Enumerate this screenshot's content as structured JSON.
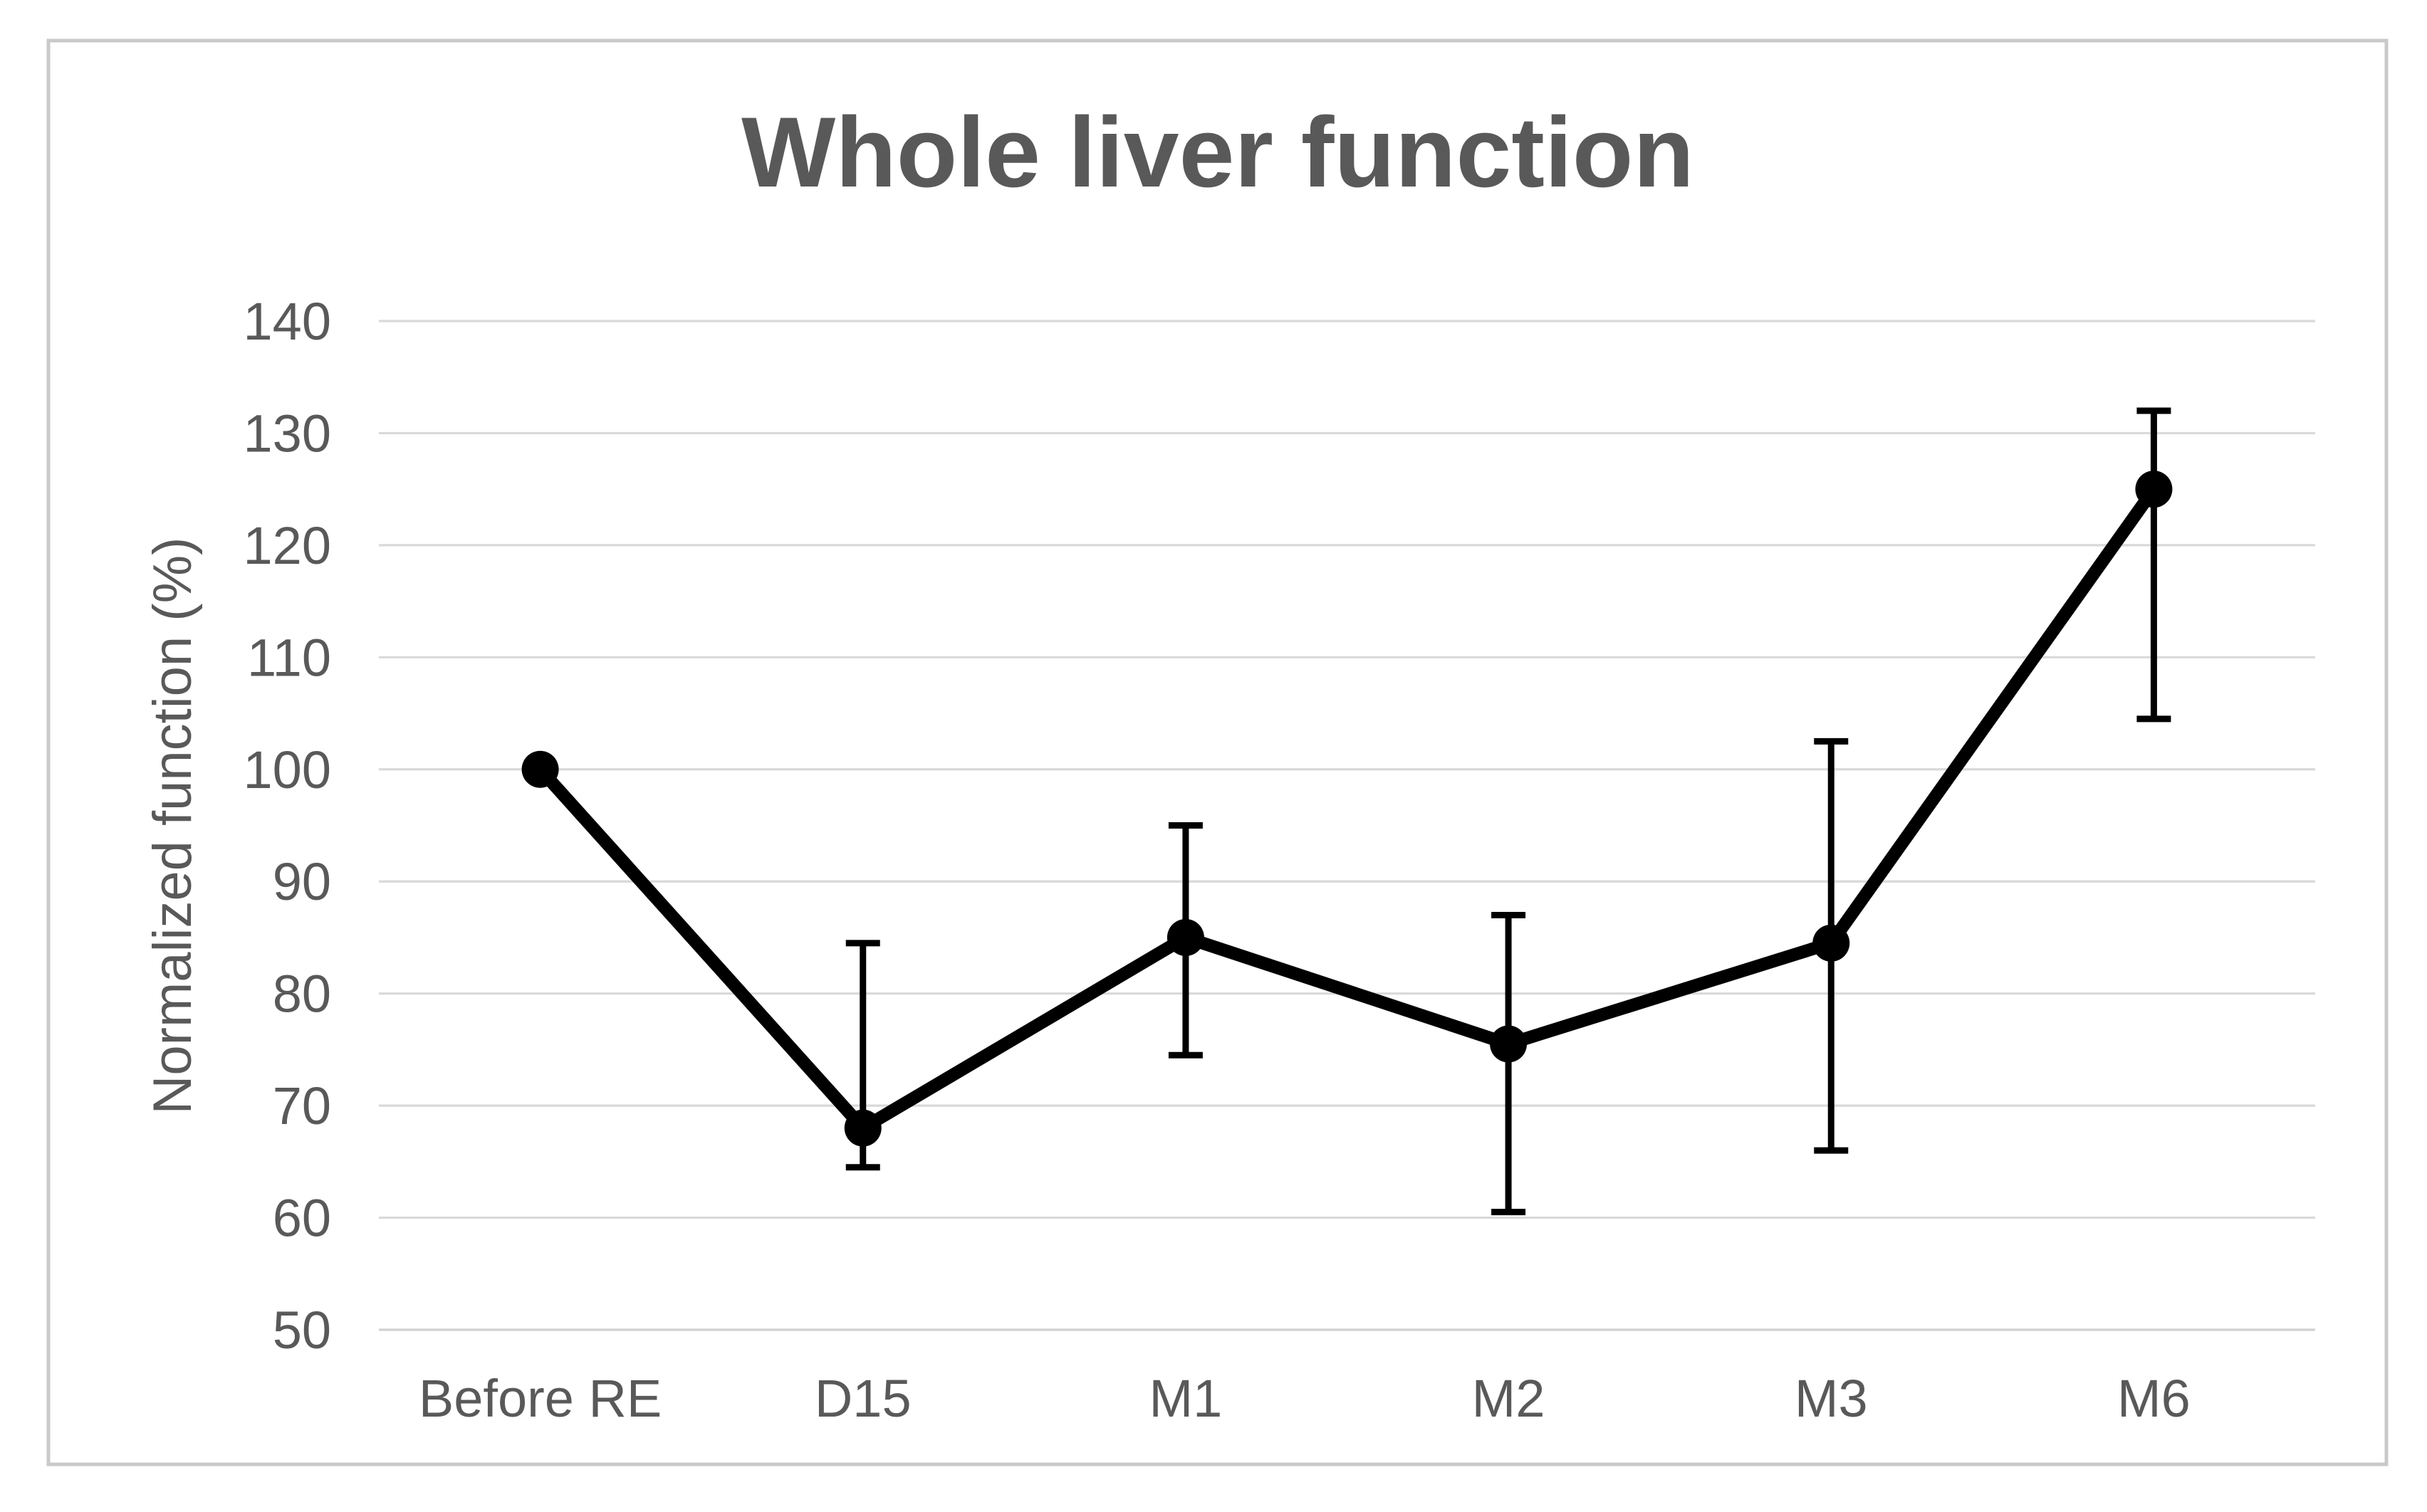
{
  "chart_data": {
    "type": "line",
    "title": "Whole liver function",
    "xlabel": "",
    "ylabel": "Normalized function (%)",
    "categories": [
      "Before RE",
      "D15",
      "M1",
      "M2",
      "M3",
      "M6"
    ],
    "series": [
      {
        "name": "Whole liver function",
        "values": [
          100,
          68,
          85,
          75.5,
          84.5,
          125
        ],
        "error_low": [
          null,
          64.5,
          74.5,
          60.5,
          66,
          104.5
        ],
        "error_high": [
          null,
          84.5,
          95,
          87,
          102.5,
          132
        ]
      }
    ],
    "ylim": [
      50,
      140
    ],
    "yticks": [
      50,
      60,
      70,
      80,
      90,
      100,
      110,
      120,
      130,
      140
    ],
    "grid": true,
    "legend_position": "none"
  },
  "colors": {
    "series_line": "#000000",
    "marker": "#000000",
    "error_bar": "#000000",
    "gridline": "#d9d9d9",
    "axis_line": "#d0d0d0",
    "tick_text": "#595959",
    "title_text": "#595959",
    "frame_border": "#c9c9c9",
    "background": "#ffffff"
  }
}
